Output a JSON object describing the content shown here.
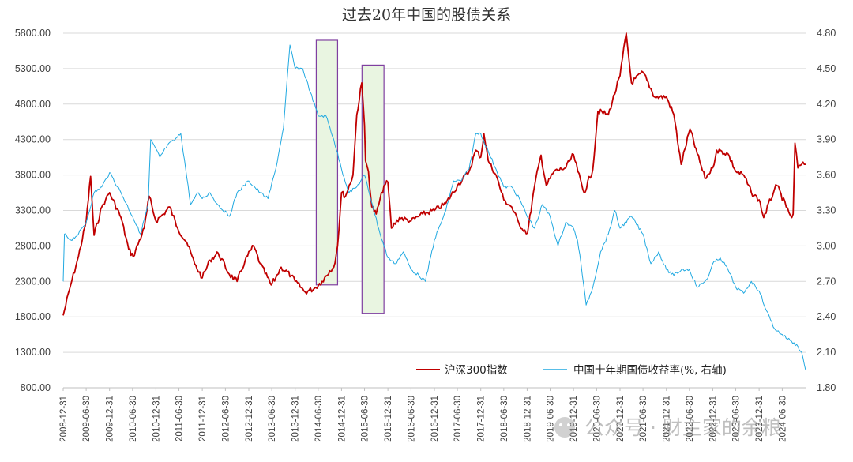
{
  "chart_data": {
    "type": "line",
    "title": "过去20年中国的股债关系",
    "left_axis": {
      "ticks": [
        "5800.00",
        "5300.00",
        "4800.00",
        "4300.00",
        "3800.00",
        "3300.00",
        "2800.00",
        "2300.00",
        "1800.00",
        "1300.00",
        "800.00"
      ],
      "ylim": [
        800,
        5800
      ]
    },
    "right_axis": {
      "ticks": [
        "4.80",
        "4.50",
        "4.20",
        "3.90",
        "3.60",
        "3.30",
        "3.00",
        "2.70",
        "2.40",
        "2.10",
        "1.80"
      ],
      "ylim": [
        1.8,
        4.8
      ]
    },
    "x_ticks": [
      "2008-12-31",
      "2009-06-30",
      "2009-12-31",
      "2010-06-30",
      "2010-12-31",
      "2011-06-30",
      "2011-12-31",
      "2012-06-30",
      "2012-12-31",
      "2013-06-30",
      "2013-12-31",
      "2014-06-30",
      "2014-12-31",
      "2015-06-30",
      "2015-12-31",
      "2016-06-30",
      "2016-12-31",
      "2017-06-30",
      "2017-12-31",
      "2018-06-30",
      "2018-12-31",
      "2019-06-30",
      "2019-12-31",
      "2020-06-30",
      "2020-12-31",
      "2021-06-30",
      "2021-12-31",
      "2022-06-30",
      "2022-12-31",
      "2023-06-30",
      "2023-12-31",
      "2024-06-30"
    ],
    "xlim": [
      "2008-12-31",
      "2024-12-31"
    ],
    "grid": true,
    "legend_position": "bottom-right",
    "series": [
      {
        "name": "沪深300指数",
        "axis": "left",
        "color": "#c00000",
        "x": [
          "2008-12-31",
          "2009-02-28",
          "2009-04-30",
          "2009-06-30",
          "2009-08-04",
          "2009-08-31",
          "2009-10-31",
          "2009-11-30",
          "2009-12-31",
          "2010-03-31",
          "2010-05-31",
          "2010-07-05",
          "2010-09-30",
          "2010-11-08",
          "2010-12-31",
          "2011-02-28",
          "2011-04-18",
          "2011-06-20",
          "2011-08-31",
          "2011-10-31",
          "2011-12-31",
          "2012-02-29",
          "2012-05-04",
          "2012-07-31",
          "2012-09-30",
          "2012-12-03",
          "2013-02-06",
          "2013-03-31",
          "2013-06-25",
          "2013-07-31",
          "2013-09-12",
          "2013-11-30",
          "2013-12-31",
          "2014-03-20",
          "2014-05-31",
          "2014-07-31",
          "2014-09-30",
          "2014-10-31",
          "2014-11-30",
          "2014-12-31",
          "2015-01-31",
          "2015-03-31",
          "2015-04-30",
          "2015-06-08",
          "2015-06-30",
          "2015-07-08",
          "2015-07-31",
          "2015-08-26",
          "2015-09-30",
          "2015-11-30",
          "2015-12-31",
          "2016-01-28",
          "2016-03-31",
          "2016-06-30",
          "2016-09-30",
          "2016-12-31",
          "2017-03-31",
          "2017-06-30",
          "2017-09-30",
          "2017-11-22",
          "2017-12-31",
          "2018-01-25",
          "2018-02-28",
          "2018-04-30",
          "2018-06-30",
          "2018-08-31",
          "2018-10-31",
          "2019-01-03",
          "2019-02-28",
          "2019-04-19",
          "2019-05-31",
          "2019-07-31",
          "2019-10-31",
          "2019-12-31",
          "2020-02-03",
          "2020-03-23",
          "2020-05-31",
          "2020-07-10",
          "2020-09-30",
          "2020-12-31",
          "2021-02-18",
          "2021-03-31",
          "2021-06-30",
          "2021-09-30",
          "2021-12-31",
          "2022-02-28",
          "2022-04-26",
          "2022-07-05",
          "2022-08-31",
          "2022-10-31",
          "2022-12-31",
          "2023-01-31",
          "2023-04-30",
          "2023-06-30",
          "2023-08-31",
          "2023-10-31",
          "2023-12-31",
          "2024-02-05",
          "2024-04-30",
          "2024-05-20",
          "2024-07-31",
          "2024-09-13",
          "2024-09-24",
          "2024-10-08",
          "2024-10-31",
          "2024-11-30",
          "2024-12-31"
        ],
        "y": [
          1820,
          2250,
          2650,
          3150,
          3780,
          2950,
          3350,
          3450,
          3550,
          3200,
          2750,
          2650,
          3050,
          3500,
          3150,
          3250,
          3350,
          3050,
          2850,
          2550,
          2350,
          2600,
          2700,
          2400,
          2300,
          2600,
          2800,
          2550,
          2250,
          2350,
          2500,
          2380,
          2300,
          2150,
          2200,
          2300,
          2450,
          2500,
          2800,
          3550,
          3500,
          3800,
          4650,
          5100,
          4500,
          4000,
          3850,
          3350,
          3250,
          3650,
          3700,
          3050,
          3200,
          3150,
          3250,
          3300,
          3400,
          3650,
          3850,
          4150,
          4050,
          4380,
          4000,
          3800,
          3450,
          3350,
          3100,
          2980,
          3650,
          4080,
          3650,
          3850,
          3900,
          4090,
          3850,
          3550,
          3880,
          4700,
          4650,
          5200,
          5800,
          5100,
          5250,
          4900,
          4900,
          4650,
          3950,
          4450,
          4100,
          3750,
          3900,
          4150,
          4100,
          3850,
          3800,
          3550,
          3450,
          3200,
          3600,
          3650,
          3350,
          3200,
          3250,
          4250,
          3900,
          3950,
          3950
        ]
      },
      {
        "name": "中国十年期国债收益率(%, 右轴)",
        "axis": "right",
        "color": "#21a9e1",
        "x": [
          "2008-12-31",
          "2009-01-10",
          "2009-02-28",
          "2009-04-30",
          "2009-06-30",
          "2009-08-31",
          "2009-10-31",
          "2009-12-31",
          "2010-03-31",
          "2010-06-30",
          "2010-08-31",
          "2010-10-31",
          "2010-11-20",
          "2011-01-31",
          "2011-03-31",
          "2011-05-31",
          "2011-07-15",
          "2011-09-30",
          "2011-11-30",
          "2011-12-31",
          "2012-02-29",
          "2012-04-30",
          "2012-07-31",
          "2012-09-30",
          "2012-12-31",
          "2013-03-31",
          "2013-05-31",
          "2013-07-31",
          "2013-09-30",
          "2013-11-20",
          "2013-12-31",
          "2014-02-28",
          "2014-04-30",
          "2014-06-30",
          "2014-08-31",
          "2014-10-31",
          "2014-12-31",
          "2015-02-28",
          "2015-04-30",
          "2015-06-30",
          "2015-08-31",
          "2015-10-31",
          "2015-12-31",
          "2016-02-28",
          "2016-04-30",
          "2016-06-30",
          "2016-08-31",
          "2016-10-21",
          "2016-12-31",
          "2017-03-31",
          "2017-05-31",
          "2017-07-31",
          "2017-09-30",
          "2017-11-22",
          "2017-12-31",
          "2018-02-28",
          "2018-04-30",
          "2018-06-30",
          "2018-08-31",
          "2018-10-31",
          "2018-12-31",
          "2019-02-28",
          "2019-04-30",
          "2019-06-30",
          "2019-08-31",
          "2019-10-31",
          "2019-12-31",
          "2020-01-31",
          "2020-02-28",
          "2020-04-08",
          "2020-05-31",
          "2020-07-31",
          "2020-09-30",
          "2020-11-20",
          "2020-12-31",
          "2021-03-31",
          "2021-06-30",
          "2021-08-31",
          "2021-10-31",
          "2021-12-31",
          "2022-02-28",
          "2022-04-30",
          "2022-06-30",
          "2022-08-31",
          "2022-10-31",
          "2022-11-30",
          "2022-12-31",
          "2023-02-28",
          "2023-04-30",
          "2023-06-30",
          "2023-08-31",
          "2023-10-31",
          "2023-12-31",
          "2024-02-28",
          "2024-04-30",
          "2024-06-30",
          "2024-08-31",
          "2024-10-31",
          "2024-11-30",
          "2024-12-31"
        ],
        "y": [
          2.7,
          3.1,
          3.05,
          3.1,
          3.2,
          3.45,
          3.5,
          3.62,
          3.45,
          3.25,
          3.1,
          3.35,
          3.9,
          3.75,
          3.85,
          3.9,
          3.95,
          3.35,
          3.45,
          3.4,
          3.45,
          3.35,
          3.25,
          3.45,
          3.55,
          3.45,
          3.4,
          3.65,
          4.0,
          4.7,
          4.5,
          4.5,
          4.3,
          4.1,
          4.1,
          3.9,
          3.65,
          3.45,
          3.5,
          3.6,
          3.35,
          3.1,
          2.9,
          2.85,
          2.95,
          2.8,
          2.75,
          2.7,
          3.05,
          3.3,
          3.55,
          3.55,
          3.65,
          3.95,
          3.95,
          3.8,
          3.65,
          3.5,
          3.5,
          3.4,
          3.25,
          3.15,
          3.35,
          3.25,
          3.0,
          3.2,
          3.15,
          3.05,
          2.85,
          2.5,
          2.65,
          2.95,
          3.1,
          3.3,
          3.15,
          3.25,
          3.1,
          2.85,
          2.95,
          2.8,
          2.75,
          2.8,
          2.8,
          2.65,
          2.7,
          2.75,
          2.85,
          2.9,
          2.8,
          2.65,
          2.6,
          2.7,
          2.62,
          2.45,
          2.3,
          2.25,
          2.2,
          2.15,
          2.1,
          1.95
        ]
      }
    ]
  },
  "highlight_boxes": [
    {
      "x_start": "2014-06-15",
      "x_end": "2014-11-30",
      "left_top": 5700,
      "left_bottom": 2250
    },
    {
      "x_start": "2015-06-10",
      "x_end": "2015-11-30",
      "left_top": 5350,
      "left_bottom": 1850
    }
  ],
  "colors": {
    "box_stroke": "#7f3fa0",
    "box_fill": "#e9f5e1",
    "grid": "#d9d9d9"
  },
  "watermark": "公众号 · 财主家的余粮"
}
